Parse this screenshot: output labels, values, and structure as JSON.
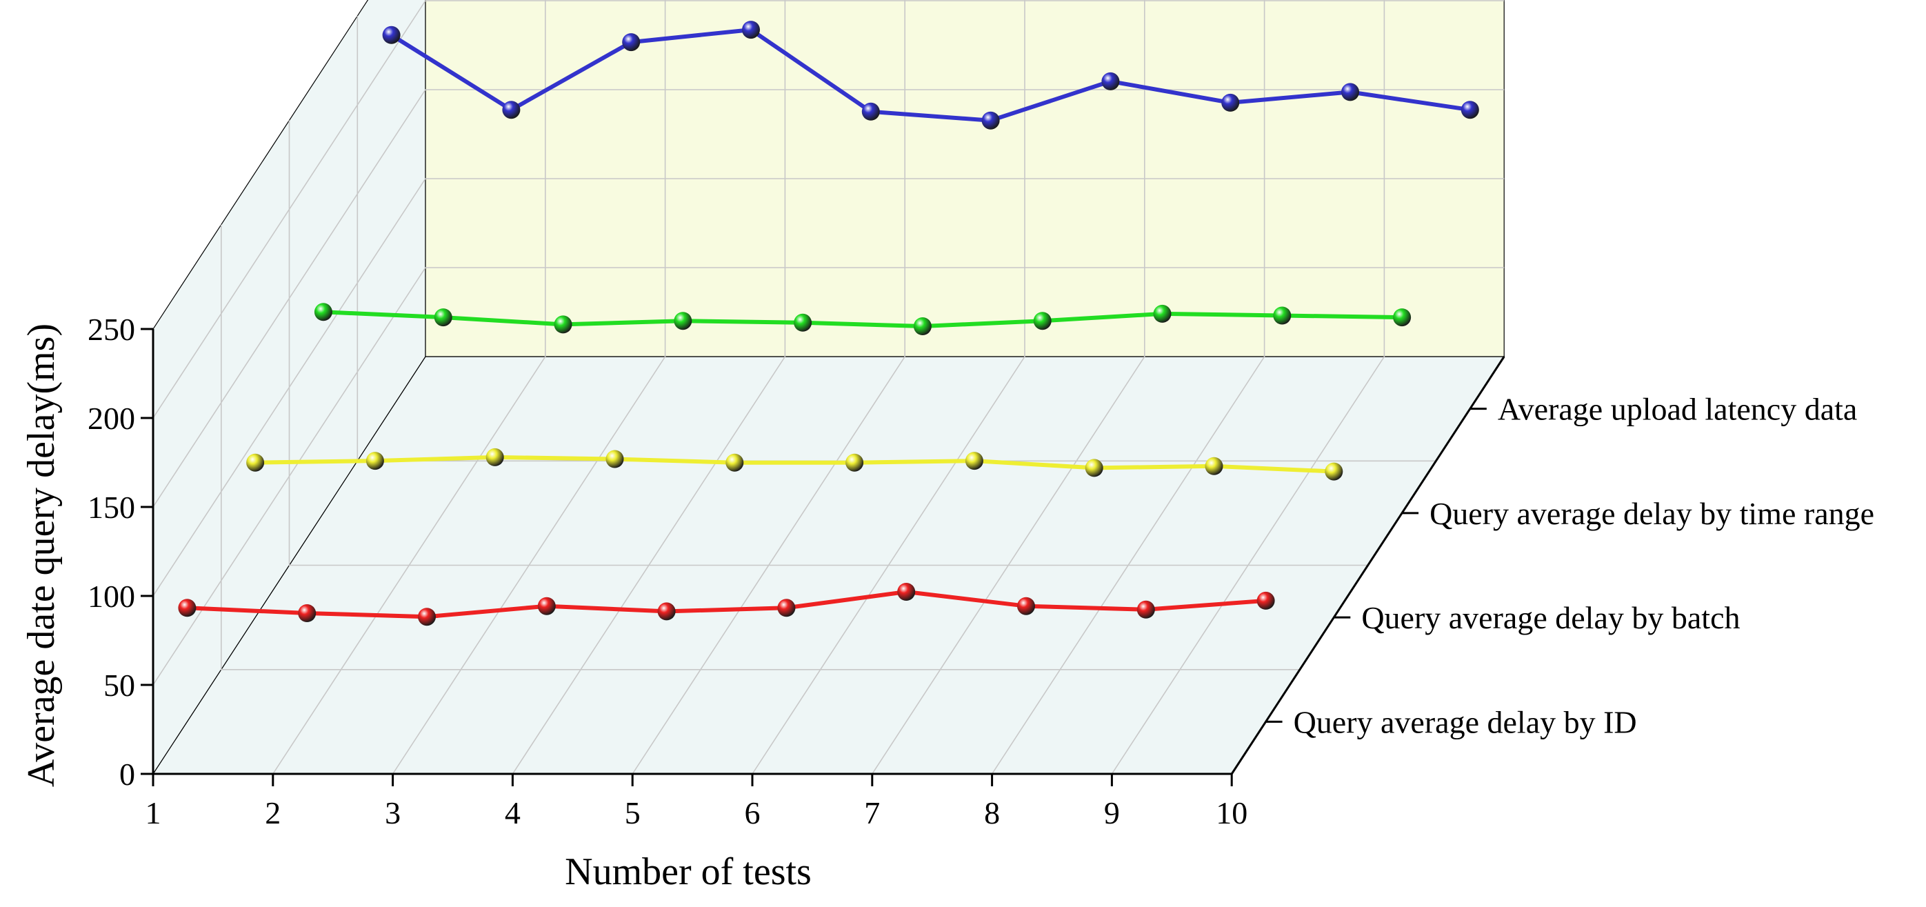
{
  "chart_data": {
    "type": "line",
    "variant": "3d-waterfall",
    "title": "",
    "xlabel": "Number of tests",
    "ylabel": "Average date query delay(ms)",
    "x": [
      1,
      2,
      3,
      4,
      5,
      6,
      7,
      8,
      9,
      10
    ],
    "x_tick_labels": [
      "1",
      "2",
      "3",
      "4",
      "5",
      "6",
      "7",
      "8",
      "9",
      "10"
    ],
    "ylim": [
      0,
      250
    ],
    "y_ticks": [
      0,
      50,
      100,
      150,
      200,
      250
    ],
    "y_tick_labels": [
      "0",
      "50",
      "100",
      "150",
      "200",
      "250"
    ],
    "grid": true,
    "legend": "series labels along depth axis (right)",
    "colors": {
      "back_wall": "#f8fbe0",
      "side_wall": "#eef6f6",
      "floor": "#eef6f6",
      "grid": "#c8c8c8",
      "axis": "#000000"
    },
    "series": [
      {
        "name": "Query average delay by ID",
        "color": "#ee2222",
        "values": [
          64,
          61,
          59,
          65,
          62,
          64,
          73,
          65,
          63,
          68
        ]
      },
      {
        "name": "Query average delay by batch",
        "color": "#eeee33",
        "values": [
          87,
          88,
          90,
          89,
          87,
          87,
          88,
          84,
          85,
          82
        ]
      },
      {
        "name": "Query average delay by time range",
        "color": "#22dd22",
        "values": [
          113,
          110,
          106,
          108,
          107,
          105,
          108,
          112,
          111,
          110
        ]
      },
      {
        "name": "Average upload latency data",
        "color": "#3333cc",
        "values": [
          210,
          168,
          206,
          213,
          167,
          162,
          184,
          172,
          178,
          168
        ]
      }
    ]
  }
}
